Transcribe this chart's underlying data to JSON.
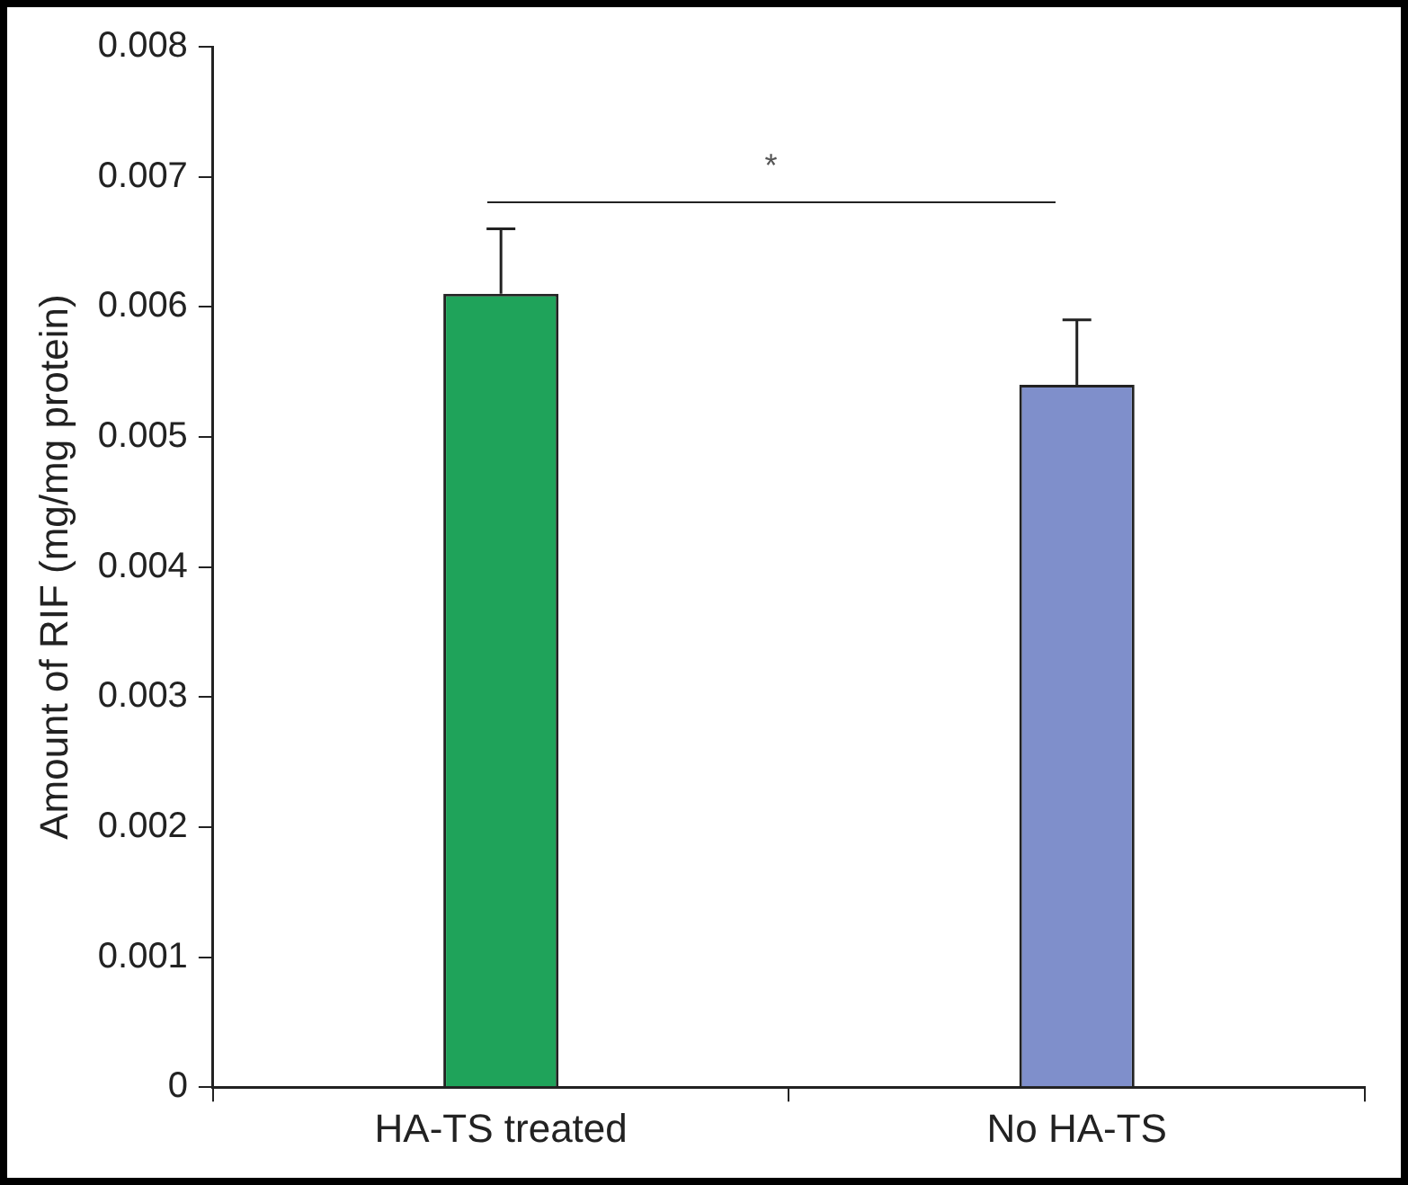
{
  "chart_data": {
    "type": "bar",
    "ylabel": "Amount of RIF (mg/mg protein)",
    "categories": [
      "HA-TS treated",
      "No HA-TS"
    ],
    "values": [
      0.0061,
      0.0054
    ],
    "colors": [
      "#1fa35a",
      "#7f8fcb"
    ],
    "errors": [
      0.0005,
      0.0005
    ],
    "ylim": [
      0,
      0.008
    ],
    "yticks": [
      0,
      0.001,
      0.002,
      0.003,
      0.004,
      0.005,
      0.006,
      0.007,
      0.008
    ],
    "grid": false,
    "legend": false,
    "annotations": [
      "*"
    ]
  }
}
